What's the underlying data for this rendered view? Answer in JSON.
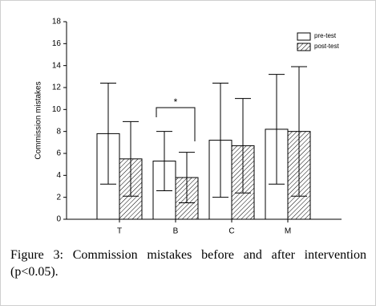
{
  "chart_data": {
    "type": "bar",
    "categories": [
      "T",
      "B",
      "C",
      "M"
    ],
    "series": [
      {
        "name": "pre-test",
        "color": "#ffffff",
        "values": [
          7.8,
          5.3,
          7.2,
          8.2
        ],
        "errors": [
          4.6,
          2.7,
          5.2,
          5.0
        ]
      },
      {
        "name": "post-test",
        "color": "#ffffff",
        "hatch": true,
        "values": [
          5.5,
          3.8,
          6.7,
          8.0
        ],
        "errors": [
          3.4,
          2.3,
          4.3,
          5.9
        ]
      }
    ],
    "y_label": "Commission mistakes",
    "significance": {
      "category": 1,
      "label": "*"
    },
    "ylim": [
      0,
      18
    ],
    "yticks": [
      0,
      2,
      4,
      6,
      8,
      10,
      12,
      14,
      16,
      18
    ],
    "legend": "top-right",
    "caption": "Figure 3: Commission mistakes before and after intervention (p<0.05)."
  }
}
